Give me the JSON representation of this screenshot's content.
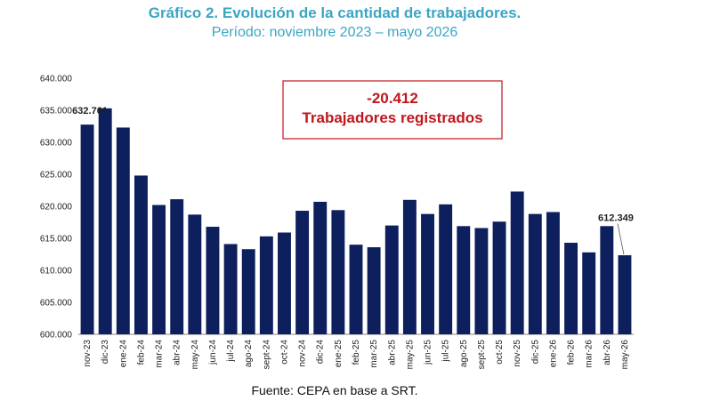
{
  "chart_data": {
    "type": "bar",
    "title": "Gráfico 2. Evolución de la cantidad de trabajadores.",
    "subtitle": "Período: noviembre 2023 – mayo 2026",
    "categories": [
      "nov-23",
      "dic-23",
      "ene-24",
      "feb-24",
      "mar-24",
      "abr-24",
      "may-24",
      "jun-24",
      "jul-24",
      "ago-24",
      "sept-24",
      "oct-24",
      "nov-24",
      "dic-24",
      "ene-25",
      "feb-25",
      "mar-25",
      "abr-25",
      "may-25",
      "jun-25",
      "jul-25",
      "ago-25",
      "sept-25",
      "oct-25",
      "nov-25",
      "dic-25",
      "ene-26",
      "feb-26",
      "mar-26",
      "abr-26",
      "may-26"
    ],
    "values": [
      632761,
      635300,
      632300,
      624800,
      620200,
      621100,
      618700,
      616800,
      614100,
      613300,
      615300,
      615900,
      619300,
      620700,
      619400,
      614000,
      613600,
      617000,
      621000,
      618800,
      620300,
      616900,
      616600,
      617600,
      622300,
      618800,
      619100,
      614300,
      612800,
      616900,
      612349
    ],
    "ylim": [
      600000,
      640000
    ],
    "yticks": [
      "600.000",
      "605.000",
      "610.000",
      "615.000",
      "620.000",
      "625.000",
      "630.000",
      "635.000",
      "640.000"
    ],
    "data_labels": [
      {
        "index": 0,
        "text": "632.761"
      },
      {
        "index": 30,
        "text": "612.349"
      }
    ],
    "bar_color": "#0d1f5c",
    "grid": false,
    "annotation": {
      "line1": "-20.412",
      "line2": "Trabajadores registrados",
      "color": "#c0161c"
    },
    "source": "Fuente: CEPA en base a SRT.",
    "title_color": "#3aa6c4"
  }
}
